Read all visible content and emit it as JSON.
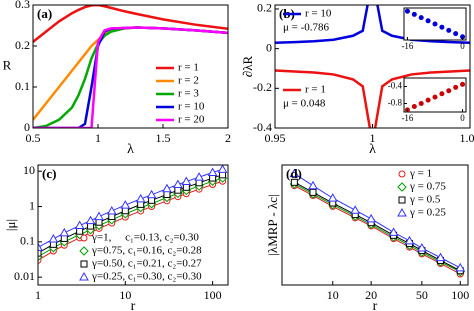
{
  "chart_data": [
    {
      "type": "line",
      "panel_label": "(a)",
      "xlabel": "λ",
      "ylabel": "R",
      "x": [
        0.5,
        0.6,
        0.7,
        0.8,
        0.85,
        0.9,
        0.95,
        1.0,
        1.05,
        1.1,
        1.2,
        1.3,
        1.5,
        1.75,
        2.0
      ],
      "series": [
        {
          "name": "r = 1",
          "color": "#ee1111",
          "values": [
            0.21,
            0.235,
            0.26,
            0.28,
            0.288,
            0.295,
            0.299,
            0.3,
            0.297,
            0.293,
            0.285,
            0.278,
            0.265,
            0.252,
            0.242
          ]
        },
        {
          "name": "r = 2",
          "color": "#ff8c00",
          "values": [
            0.02,
            0.06,
            0.1,
            0.14,
            0.16,
            0.18,
            0.2,
            0.215,
            0.228,
            0.236,
            0.243,
            0.245,
            0.243,
            0.238,
            0.232
          ]
        },
        {
          "name": "r = 3",
          "color": "#00aa00",
          "values": [
            0,
            0.005,
            0.02,
            0.05,
            0.08,
            0.12,
            0.17,
            0.205,
            0.225,
            0.235,
            0.243,
            0.245,
            0.243,
            0.238,
            0.232
          ]
        },
        {
          "name": "r = 10",
          "color": "#0000dd",
          "values": [
            0,
            0,
            0,
            0,
            0,
            0.01,
            0.1,
            0.2,
            0.235,
            0.242,
            0.244,
            0.245,
            0.243,
            0.238,
            0.232
          ]
        },
        {
          "name": "r = 20",
          "color": "#ff00ff",
          "values": [
            0,
            0,
            0,
            0,
            0,
            0,
            0,
            0.21,
            0.238,
            0.243,
            0.244,
            0.245,
            0.243,
            0.238,
            0.232
          ]
        }
      ],
      "xlim": [
        0.5,
        2
      ],
      "xticks": [
        0.5,
        1,
        1.5,
        2
      ],
      "ylim": [
        0,
        0.3
      ],
      "yticks": [
        0,
        0.1,
        0.2,
        0.3
      ],
      "legend": "lower right"
    },
    {
      "type": "line",
      "panel_label": "(b)",
      "xlabel": "λ",
      "ylabel": "∂λR",
      "x": [
        0.95,
        0.96,
        0.97,
        0.98,
        0.99,
        0.995,
        0.999,
        1.0,
        1.001,
        1.005,
        1.01,
        1.02,
        1.03,
        1.04,
        1.05
      ],
      "series": [
        {
          "name": "r = 10",
          "color": "#0000dd",
          "values": [
            0.03,
            0.033,
            0.037,
            0.045,
            0.065,
            0.09,
            0.3,
            null,
            0.3,
            0.09,
            0.065,
            0.045,
            0.037,
            0.033,
            0.03
          ]
        },
        {
          "name": "r = 1",
          "color": "#ee1111",
          "values": [
            -0.11,
            -0.115,
            -0.12,
            -0.13,
            -0.155,
            -0.19,
            -0.42,
            null,
            -0.42,
            -0.19,
            -0.155,
            -0.13,
            -0.12,
            -0.115,
            -0.11
          ]
        }
      ],
      "annotations": [
        "μ = -0.786",
        "μ = 0.048"
      ],
      "xlim": [
        0.95,
        1.05
      ],
      "xticks": [
        0.95,
        1,
        1.05
      ],
      "ylim": [
        -0.4,
        0.22
      ],
      "yticks": [
        -0.4,
        -0.2,
        0,
        0.2
      ],
      "legend": "upper left",
      "insets": [
        {
          "color": "#0000dd",
          "x": [
            -16,
            -14,
            -12,
            -10,
            -8,
            -6,
            -4,
            -2,
            0
          ],
          "values": [
            0.9,
            0.8,
            0.7,
            0.6,
            0.5,
            0.4,
            0.3,
            0.2,
            0.1
          ],
          "xlim": [
            -17,
            1
          ],
          "xticks": [
            -16,
            0
          ],
          "ylim": [
            0,
            1
          ]
        },
        {
          "color": "#cc0000",
          "x": [
            -16,
            -14,
            -12,
            -10,
            -8,
            -6,
            -4,
            -2,
            0
          ],
          "values": [
            -0.95,
            -0.87,
            -0.8,
            -0.72,
            -0.65,
            -0.57,
            -0.5,
            -0.42,
            -0.35
          ],
          "xlim": [
            -17,
            1
          ],
          "xticks": [
            -16,
            0
          ],
          "ylim": [
            -1,
            -0.2
          ],
          "yticks": [
            -0.8,
            -0.4
          ]
        }
      ]
    },
    {
      "type": "line",
      "panel_label": "(c)",
      "xlabel": "r",
      "ylabel": "|μ|",
      "logx": true,
      "logy": true,
      "x": [
        1,
        1.5,
        2,
        3,
        4,
        5,
        7,
        10,
        15,
        20,
        30,
        40,
        50,
        70,
        100,
        130
      ],
      "series": [
        {
          "name": "γ=1,     c₁=0.13, c₂=0.30",
          "color": "#e31a1c",
          "marker": "circle",
          "values": [
            0.03,
            0.055,
            0.08,
            0.13,
            0.18,
            0.24,
            0.34,
            0.5,
            0.75,
            1.0,
            1.45,
            1.9,
            2.3,
            3.1,
            4.2,
            5.2
          ]
        },
        {
          "name": "γ=0.75, c₁=0.16, c₂=0.28",
          "color": "#00a000",
          "marker": "diamond",
          "values": [
            0.038,
            0.068,
            0.1,
            0.16,
            0.22,
            0.29,
            0.42,
            0.62,
            0.93,
            1.2,
            1.8,
            2.35,
            2.85,
            3.8,
            5.2,
            6.4
          ]
        },
        {
          "name": "γ=0.50, c₁=0.21, c₂=0.27",
          "color": "#000000",
          "marker": "square",
          "values": [
            0.048,
            0.085,
            0.125,
            0.2,
            0.28,
            0.36,
            0.52,
            0.76,
            1.15,
            1.5,
            2.2,
            2.9,
            3.5,
            4.7,
            6.4,
            7.9
          ]
        },
        {
          "name": "γ=0.25, c₁=0.30, c₂=0.30",
          "color": "#3333ff",
          "marker": "triangle",
          "values": [
            0.07,
            0.12,
            0.18,
            0.29,
            0.4,
            0.52,
            0.75,
            1.1,
            1.65,
            2.15,
            3.2,
            4.2,
            5.1,
            6.8,
            9.2,
            11.3
          ]
        }
      ],
      "xlim": [
        1,
        150
      ],
      "xticks": [
        1,
        10,
        100
      ],
      "ylim": [
        0.006,
        15
      ],
      "yticks": [
        0.01,
        0.1,
        1,
        10
      ],
      "legend": "lower right"
    },
    {
      "type": "line",
      "panel_label": "(d)",
      "xlabel": "r",
      "ylabel": "|λMRP - λc|",
      "logx": true,
      "logy": true,
      "x": [
        5,
        7,
        10,
        15,
        20,
        30,
        40,
        50,
        70,
        100
      ],
      "series": [
        {
          "name": "γ = 1",
          "color": "#e31a1c",
          "marker": "circle",
          "values": [
            0.5,
            0.36,
            0.25,
            0.17,
            0.13,
            0.085,
            0.064,
            0.051,
            0.037,
            0.026
          ]
        },
        {
          "name": "γ = 0.75",
          "color": "#00a000",
          "marker": "diamond",
          "values": [
            0.53,
            0.38,
            0.265,
            0.18,
            0.137,
            0.09,
            0.068,
            0.054,
            0.039,
            0.028
          ]
        },
        {
          "name": "γ = 0.5",
          "color": "#000000",
          "marker": "square",
          "values": [
            0.56,
            0.4,
            0.28,
            0.19,
            0.145,
            0.095,
            0.072,
            0.057,
            0.041,
            0.029
          ]
        },
        {
          "name": "γ = 0.25",
          "color": "#3333ff",
          "marker": "triangle",
          "values": [
            0.75,
            0.5,
            0.33,
            0.22,
            0.165,
            0.105,
            0.079,
            0.062,
            0.045,
            0.032
          ]
        }
      ],
      "xlim": [
        4,
        115
      ],
      "xticks": [
        10,
        20,
        50,
        100
      ],
      "ylim": [
        0.018,
        1
      ],
      "legend": "upper right"
    }
  ]
}
